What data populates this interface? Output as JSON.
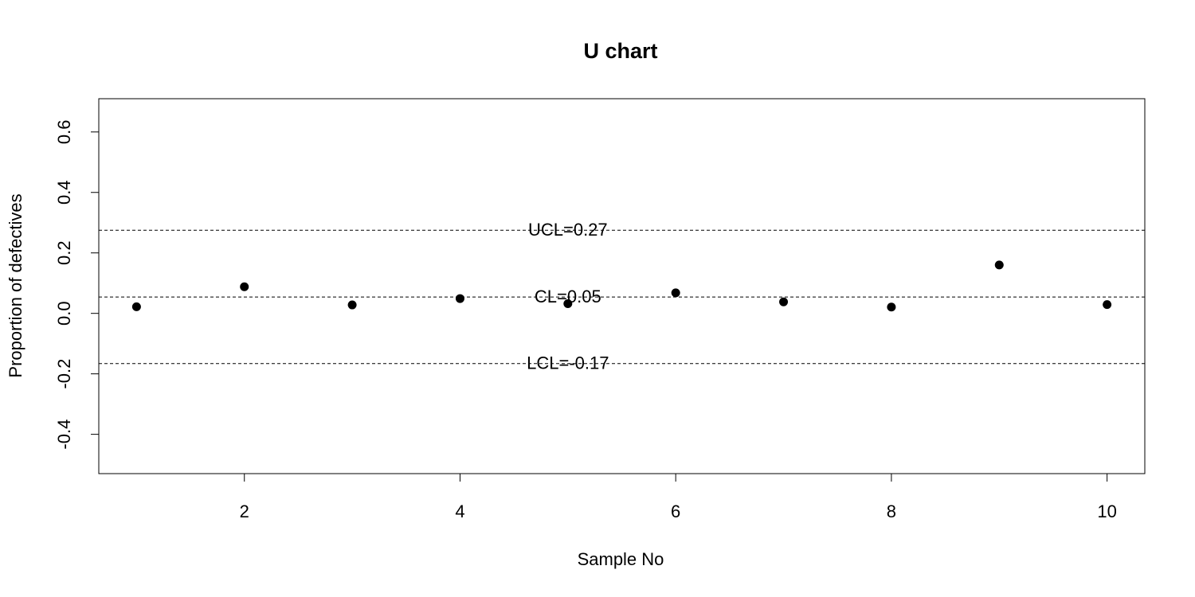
{
  "chart_data": {
    "type": "scatter",
    "title": "U chart",
    "xlabel": "Sample No",
    "ylabel": "Proportion of defectives",
    "xlim": [
      0.65,
      10.35
    ],
    "ylim": [
      -0.53,
      0.71
    ],
    "x_ticks": [
      2,
      4,
      6,
      8,
      10
    ],
    "x_tick_labels": [
      "2",
      "4",
      "6",
      "8",
      "10"
    ],
    "y_ticks": [
      -0.4,
      -0.2,
      0.0,
      0.2,
      0.4,
      0.6
    ],
    "y_tick_labels": [
      "-0.4",
      "-0.2",
      "0.0",
      "0.2",
      "0.4",
      "0.6"
    ],
    "grid": false,
    "legend": "none",
    "series": [
      {
        "x": [
          1,
          2,
          3,
          4,
          5,
          6,
          7,
          8,
          9,
          10
        ],
        "values": [
          0.022,
          0.088,
          0.028,
          0.049,
          0.032,
          0.068,
          0.038,
          0.021,
          0.16,
          0.029
        ]
      }
    ],
    "limits": [
      {
        "label": "UCL=0.27",
        "value": 0.275
      },
      {
        "label": "CL=0.05",
        "value": 0.054
      },
      {
        "label": "LCL=-0.17",
        "value": -0.166
      }
    ],
    "limit_label_x": 5
  }
}
